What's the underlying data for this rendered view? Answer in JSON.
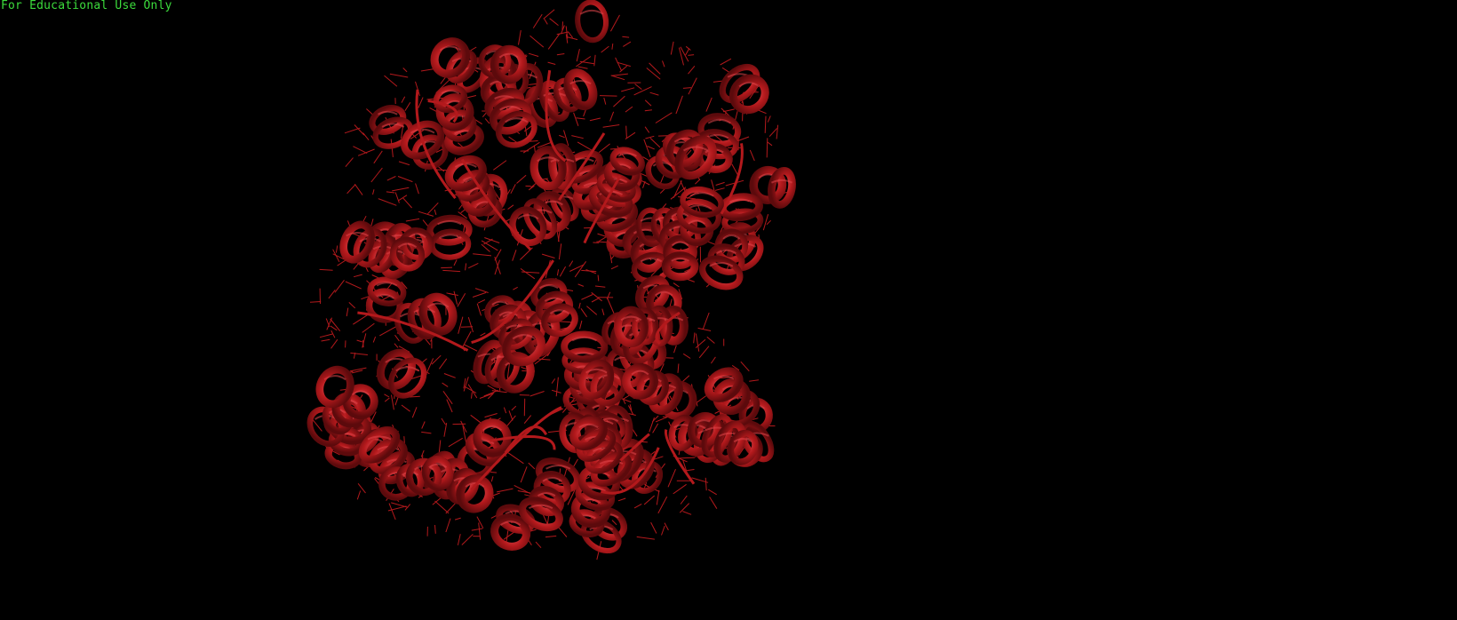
{
  "viewer": {
    "watermark_text": "For Educational Use Only",
    "watermark_color": "#3cdc3c",
    "background_color": "#000000",
    "molecule_color": "#b3191c",
    "molecule_highlight_color": "#e0454a",
    "molecule_shadow_color": "#5c0a0c",
    "representation": "cartoon with line side chains",
    "structure_icon": "protein-helix-bundle"
  }
}
